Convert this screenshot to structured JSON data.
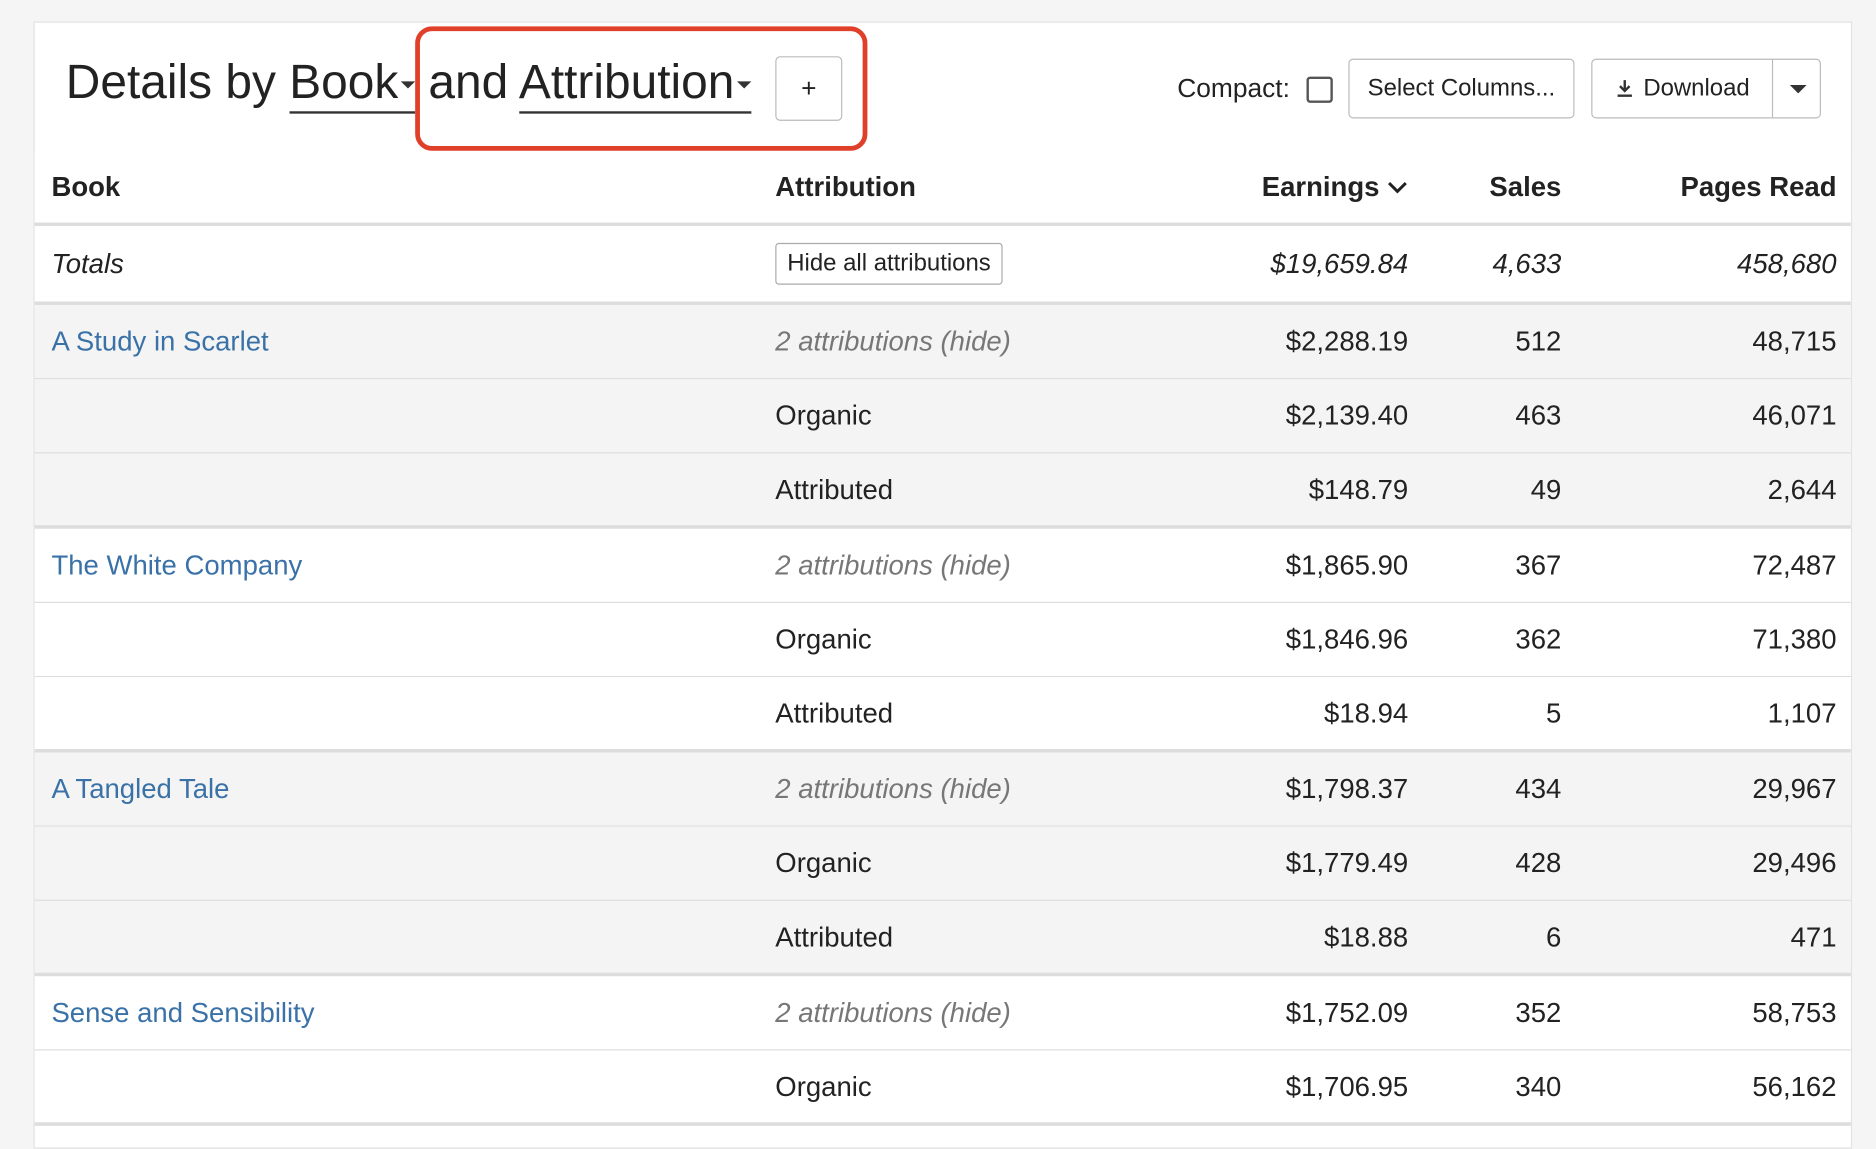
{
  "header": {
    "title_prefix": "Details by",
    "dimension_1": "Book",
    "joiner": "and",
    "dimension_2": "Attribution",
    "add_button": "+",
    "compact_label": "Compact:",
    "select_columns": "Select Columns...",
    "download": "Download"
  },
  "table": {
    "columns": [
      "Book",
      "Attribution",
      "Earnings",
      "Sales",
      "Pages Read"
    ],
    "totals": {
      "label": "Totals",
      "action": "Hide all attributions",
      "earnings": "$19,659.84",
      "sales": "4,633",
      "pages_read": "458,680"
    },
    "groups": [
      {
        "book": "A Study in Scarlet",
        "summary": {
          "attribution": "2 attributions (hide)",
          "earnings": "$2,288.19",
          "sales": "512",
          "pages_read": "48,715"
        },
        "children": [
          {
            "attribution": "Organic",
            "earnings": "$2,139.40",
            "sales": "463",
            "pages_read": "46,071"
          },
          {
            "attribution": "Attributed",
            "earnings": "$148.79",
            "sales": "49",
            "pages_read": "2,644"
          }
        ]
      },
      {
        "book": "The White Company",
        "summary": {
          "attribution": "2 attributions (hide)",
          "earnings": "$1,865.90",
          "sales": "367",
          "pages_read": "72,487"
        },
        "children": [
          {
            "attribution": "Organic",
            "earnings": "$1,846.96",
            "sales": "362",
            "pages_read": "71,380"
          },
          {
            "attribution": "Attributed",
            "earnings": "$18.94",
            "sales": "5",
            "pages_read": "1,107"
          }
        ]
      },
      {
        "book": "A Tangled Tale",
        "summary": {
          "attribution": "2 attributions (hide)",
          "earnings": "$1,798.37",
          "sales": "434",
          "pages_read": "29,967"
        },
        "children": [
          {
            "attribution": "Organic",
            "earnings": "$1,779.49",
            "sales": "428",
            "pages_read": "29,496"
          },
          {
            "attribution": "Attributed",
            "earnings": "$18.88",
            "sales": "6",
            "pages_read": "471"
          }
        ]
      },
      {
        "book": "Sense and Sensibility",
        "summary": {
          "attribution": "2 attributions (hide)",
          "earnings": "$1,752.09",
          "sales": "352",
          "pages_read": "58,753"
        },
        "children": [
          {
            "attribution": "Organic",
            "earnings": "$1,706.95",
            "sales": "340",
            "pages_read": "56,162"
          }
        ]
      }
    ]
  }
}
